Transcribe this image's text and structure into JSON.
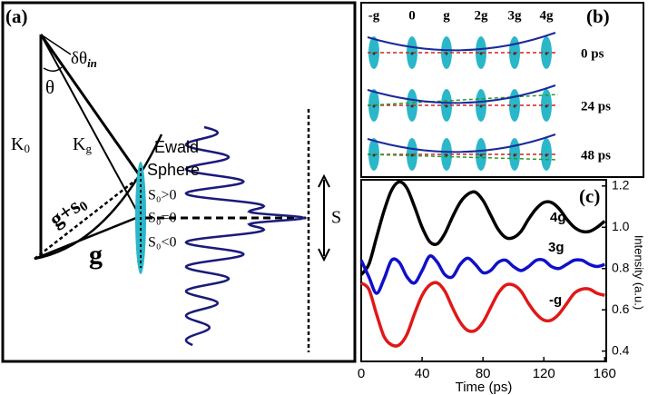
{
  "panel_a": {
    "label": "(a)",
    "delta_theta": "δθ",
    "delta_theta_sub": "in",
    "theta": "θ",
    "k0": "K",
    "k0_sub": "0",
    "kg": "K",
    "kg_sub": "g",
    "ewald": [
      "Ewald",
      "Sphere"
    ],
    "g_plus_s": "g+s",
    "g_plus_s_sub": "0",
    "g": "g",
    "s_pos": "S₀>0",
    "s_zero": "S₀=0",
    "s_neg": "S₀<0",
    "s": "S"
  },
  "panel_b": {
    "label": "(b)",
    "columns": [
      "-g",
      "0",
      "g",
      "2g",
      "3g",
      "4g"
    ],
    "rows": [
      "0 ps",
      "24 ps",
      "48 ps"
    ]
  },
  "chart_data": {
    "type": "line",
    "panel_label": "(c)",
    "x_label": "Time (ps)",
    "y_label": "Intensity (a.u.)",
    "x": [
      0,
      5,
      10,
      15,
      20,
      25,
      30,
      35,
      40,
      45,
      50,
      55,
      60,
      65,
      70,
      75,
      80,
      85,
      90,
      95,
      100,
      105,
      110,
      115,
      120,
      125,
      130,
      135,
      140,
      145,
      150,
      155,
      160
    ],
    "series": [
      {
        "name": "4g",
        "color": "#000000",
        "values": [
          0.77,
          0.82,
          0.95,
          1.08,
          1.18,
          1.22,
          1.19,
          1.1,
          1.0,
          0.93,
          0.92,
          0.97,
          1.05,
          1.12,
          1.16,
          1.17,
          1.13,
          1.06,
          0.99,
          0.95,
          0.95,
          0.98,
          1.04,
          1.09,
          1.12,
          1.12,
          1.09,
          1.04,
          1.0,
          0.98,
          0.98,
          1.0,
          1.03
        ]
      },
      {
        "name": "3g",
        "color": "#1010c8",
        "values": [
          0.84,
          0.76,
          0.68,
          0.75,
          0.84,
          0.83,
          0.76,
          0.73,
          0.79,
          0.86,
          0.83,
          0.77,
          0.76,
          0.82,
          0.85,
          0.82,
          0.78,
          0.79,
          0.83,
          0.84,
          0.81,
          0.79,
          0.81,
          0.84,
          0.84,
          0.81,
          0.8,
          0.82,
          0.84,
          0.84,
          0.82,
          0.81,
          0.82
        ]
      },
      {
        "name": "-g",
        "color": "#e01818",
        "values": [
          0.73,
          0.7,
          0.58,
          0.47,
          0.43,
          0.43,
          0.48,
          0.58,
          0.67,
          0.72,
          0.73,
          0.69,
          0.61,
          0.54,
          0.5,
          0.5,
          0.54,
          0.61,
          0.68,
          0.72,
          0.72,
          0.69,
          0.63,
          0.58,
          0.55,
          0.55,
          0.58,
          0.63,
          0.68,
          0.7,
          0.7,
          0.68,
          0.67
        ]
      }
    ],
    "xlim": [
      0,
      161
    ],
    "ylim": [
      0.35,
      1.23
    ],
    "xticks": [
      0,
      40,
      80,
      120,
      160
    ],
    "yticks": [
      0.4,
      0.6,
      0.8,
      {
        "value": 1.0,
        "label": "1.0"
      },
      1.2
    ]
  }
}
